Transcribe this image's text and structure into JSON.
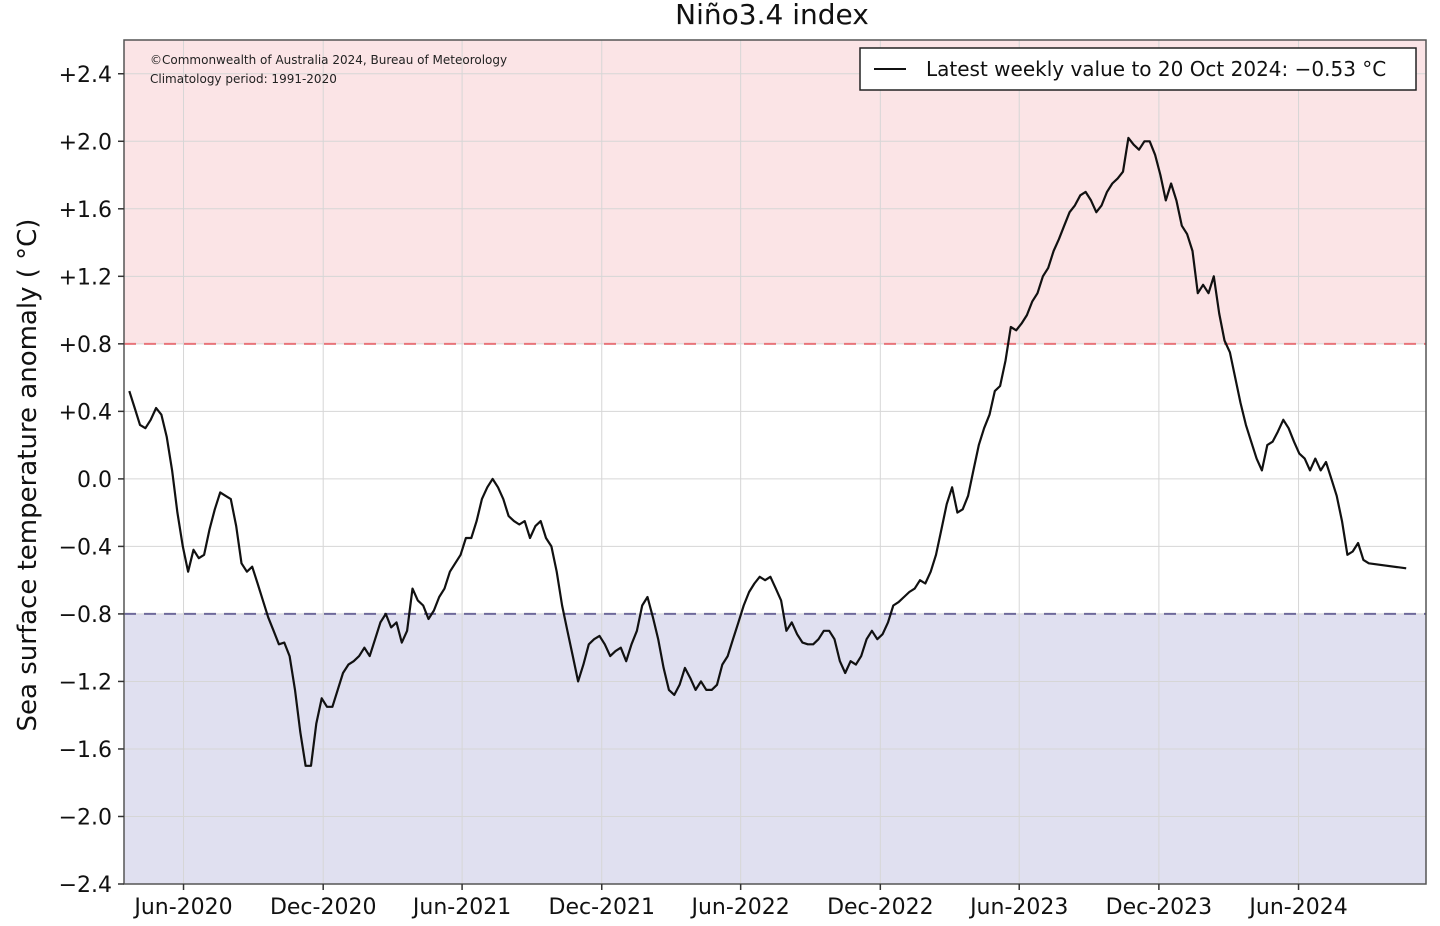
{
  "chart_data": {
    "type": "line",
    "title": "Niño3.4 index",
    "ylabel": "Sea surface temperature anomaly ( °C)",
    "xlabel": "",
    "copyright_lines": [
      "©Commonwealth of Australia 2024, Bureau of Meteorology",
      "Climatology period: 1991-2020"
    ],
    "legend": {
      "placement": "top-right",
      "entry": "Latest weekly value to 20 Oct 2024: −0.53 °C"
    },
    "ylim": [
      -2.4,
      2.6
    ],
    "y_ticks": [
      {
        "value": 2.4,
        "label": "+2.4"
      },
      {
        "value": 2.0,
        "label": "+2.0"
      },
      {
        "value": 1.6,
        "label": "+1.6"
      },
      {
        "value": 1.2,
        "label": "+1.2"
      },
      {
        "value": 0.8,
        "label": "+0.8"
      },
      {
        "value": 0.4,
        "label": "+0.4"
      },
      {
        "value": 0.0,
        "label": "0.0"
      },
      {
        "value": -0.4,
        "label": "−0.4"
      },
      {
        "value": -0.8,
        "label": "−0.8"
      },
      {
        "value": -1.2,
        "label": "−1.2"
      },
      {
        "value": -1.6,
        "label": "−1.6"
      },
      {
        "value": -2.0,
        "label": "−2.0"
      },
      {
        "value": -2.4,
        "label": "−2.4"
      }
    ],
    "xlim": [
      "2020-03-15",
      "2024-11-15"
    ],
    "x_ticks": [
      {
        "date": "2020-06-01",
        "label": "Jun-2020"
      },
      {
        "date": "2020-12-01",
        "label": "Dec-2020"
      },
      {
        "date": "2021-06-01",
        "label": "Jun-2021"
      },
      {
        "date": "2021-12-01",
        "label": "Dec-2021"
      },
      {
        "date": "2022-06-01",
        "label": "Jun-2022"
      },
      {
        "date": "2022-12-01",
        "label": "Dec-2022"
      },
      {
        "date": "2023-06-01",
        "label": "Jun-2023"
      },
      {
        "date": "2023-12-01",
        "label": "Dec-2023"
      },
      {
        "date": "2024-06-01",
        "label": "Jun-2024"
      }
    ],
    "grid": true,
    "thresholds": [
      {
        "value": 0.8,
        "color": "#e8747a",
        "shade_above": true,
        "shade_color": "#fbe4e6"
      },
      {
        "value": -0.8,
        "color": "#6e6a9a",
        "shade_below": true,
        "shade_color": "#e0e0f0"
      }
    ],
    "series": [
      {
        "color": "#111111",
        "points": [
          [
            "2020-03-22",
            0.52
          ],
          [
            "2020-03-29",
            0.42
          ],
          [
            "2020-04-05",
            0.32
          ],
          [
            "2020-04-12",
            0.3
          ],
          [
            "2020-04-19",
            0.35
          ],
          [
            "2020-04-26",
            0.42
          ],
          [
            "2020-05-03",
            0.38
          ],
          [
            "2020-05-10",
            0.25
          ],
          [
            "2020-05-17",
            0.05
          ],
          [
            "2020-05-24",
            -0.2
          ],
          [
            "2020-05-31",
            -0.4
          ],
          [
            "2020-06-07",
            -0.55
          ],
          [
            "2020-06-14",
            -0.42
          ],
          [
            "2020-06-21",
            -0.47
          ],
          [
            "2020-06-28",
            -0.45
          ],
          [
            "2020-07-05",
            -0.3
          ],
          [
            "2020-07-12",
            -0.18
          ],
          [
            "2020-07-19",
            -0.08
          ],
          [
            "2020-07-26",
            -0.1
          ],
          [
            "2020-08-02",
            -0.12
          ],
          [
            "2020-08-09",
            -0.28
          ],
          [
            "2020-08-16",
            -0.5
          ],
          [
            "2020-08-23",
            -0.55
          ],
          [
            "2020-08-30",
            -0.52
          ],
          [
            "2020-09-06",
            -0.62
          ],
          [
            "2020-09-13",
            -0.72
          ],
          [
            "2020-09-20",
            -0.82
          ],
          [
            "2020-09-27",
            -0.9
          ],
          [
            "2020-10-04",
            -0.98
          ],
          [
            "2020-10-11",
            -0.97
          ],
          [
            "2020-10-18",
            -1.05
          ],
          [
            "2020-10-25",
            -1.25
          ],
          [
            "2020-11-01",
            -1.5
          ],
          [
            "2020-11-08",
            -1.7
          ],
          [
            "2020-11-15",
            -1.7
          ],
          [
            "2020-11-22",
            -1.45
          ],
          [
            "2020-11-29",
            -1.3
          ],
          [
            "2020-12-06",
            -1.35
          ],
          [
            "2020-12-13",
            -1.35
          ],
          [
            "2020-12-20",
            -1.25
          ],
          [
            "2020-12-27",
            -1.15
          ],
          [
            "2021-01-03",
            -1.1
          ],
          [
            "2021-01-10",
            -1.08
          ],
          [
            "2021-01-17",
            -1.05
          ],
          [
            "2021-01-24",
            -1.0
          ],
          [
            "2021-01-31",
            -1.05
          ],
          [
            "2021-02-07",
            -0.95
          ],
          [
            "2021-02-14",
            -0.85
          ],
          [
            "2021-02-21",
            -0.8
          ],
          [
            "2021-02-28",
            -0.88
          ],
          [
            "2021-03-07",
            -0.85
          ],
          [
            "2021-03-14",
            -0.97
          ],
          [
            "2021-03-21",
            -0.9
          ],
          [
            "2021-03-28",
            -0.65
          ],
          [
            "2021-04-04",
            -0.72
          ],
          [
            "2021-04-11",
            -0.75
          ],
          [
            "2021-04-18",
            -0.83
          ],
          [
            "2021-04-25",
            -0.78
          ],
          [
            "2021-05-02",
            -0.7
          ],
          [
            "2021-05-09",
            -0.65
          ],
          [
            "2021-05-16",
            -0.55
          ],
          [
            "2021-05-23",
            -0.5
          ],
          [
            "2021-05-30",
            -0.45
          ],
          [
            "2021-06-06",
            -0.35
          ],
          [
            "2021-06-13",
            -0.35
          ],
          [
            "2021-06-20",
            -0.25
          ],
          [
            "2021-06-27",
            -0.12
          ],
          [
            "2021-07-04",
            -0.05
          ],
          [
            "2021-07-11",
            -0.0
          ],
          [
            "2021-07-18",
            -0.05
          ],
          [
            "2021-07-25",
            -0.12
          ],
          [
            "2021-08-01",
            -0.22
          ],
          [
            "2021-08-08",
            -0.25
          ],
          [
            "2021-08-15",
            -0.27
          ],
          [
            "2021-08-22",
            -0.25
          ],
          [
            "2021-08-29",
            -0.35
          ],
          [
            "2021-09-05",
            -0.28
          ],
          [
            "2021-09-12",
            -0.25
          ],
          [
            "2021-09-19",
            -0.35
          ],
          [
            "2021-09-26",
            -0.4
          ],
          [
            "2021-10-03",
            -0.55
          ],
          [
            "2021-10-10",
            -0.75
          ],
          [
            "2021-10-17",
            -0.9
          ],
          [
            "2021-10-24",
            -1.05
          ],
          [
            "2021-10-31",
            -1.2
          ],
          [
            "2021-11-07",
            -1.1
          ],
          [
            "2021-11-14",
            -0.98
          ],
          [
            "2021-11-21",
            -0.95
          ],
          [
            "2021-11-28",
            -0.93
          ],
          [
            "2021-12-05",
            -0.98
          ],
          [
            "2021-12-12",
            -1.05
          ],
          [
            "2021-12-19",
            -1.02
          ],
          [
            "2021-12-26",
            -1.0
          ],
          [
            "2022-01-02",
            -1.08
          ],
          [
            "2022-01-09",
            -0.98
          ],
          [
            "2022-01-16",
            -0.9
          ],
          [
            "2022-01-23",
            -0.75
          ],
          [
            "2022-01-30",
            -0.7
          ],
          [
            "2022-02-06",
            -0.82
          ],
          [
            "2022-02-13",
            -0.95
          ],
          [
            "2022-02-20",
            -1.12
          ],
          [
            "2022-02-27",
            -1.25
          ],
          [
            "2022-03-06",
            -1.28
          ],
          [
            "2022-03-13",
            -1.22
          ],
          [
            "2022-03-20",
            -1.12
          ],
          [
            "2022-03-27",
            -1.18
          ],
          [
            "2022-04-03",
            -1.25
          ],
          [
            "2022-04-10",
            -1.2
          ],
          [
            "2022-04-17",
            -1.25
          ],
          [
            "2022-04-24",
            -1.25
          ],
          [
            "2022-05-01",
            -1.22
          ],
          [
            "2022-05-08",
            -1.1
          ],
          [
            "2022-05-15",
            -1.05
          ],
          [
            "2022-05-22",
            -0.95
          ],
          [
            "2022-05-29",
            -0.85
          ],
          [
            "2022-06-05",
            -0.75
          ],
          [
            "2022-06-12",
            -0.67
          ],
          [
            "2022-06-19",
            -0.62
          ],
          [
            "2022-06-26",
            -0.58
          ],
          [
            "2022-07-03",
            -0.6
          ],
          [
            "2022-07-10",
            -0.58
          ],
          [
            "2022-07-17",
            -0.65
          ],
          [
            "2022-07-24",
            -0.72
          ],
          [
            "2022-07-31",
            -0.9
          ],
          [
            "2022-08-07",
            -0.85
          ],
          [
            "2022-08-14",
            -0.92
          ],
          [
            "2022-08-21",
            -0.97
          ],
          [
            "2022-08-28",
            -0.98
          ],
          [
            "2022-09-04",
            -0.98
          ],
          [
            "2022-09-11",
            -0.95
          ],
          [
            "2022-09-18",
            -0.9
          ],
          [
            "2022-09-25",
            -0.9
          ],
          [
            "2022-10-02",
            -0.95
          ],
          [
            "2022-10-09",
            -1.08
          ],
          [
            "2022-10-16",
            -1.15
          ],
          [
            "2022-10-23",
            -1.08
          ],
          [
            "2022-10-30",
            -1.1
          ],
          [
            "2022-11-06",
            -1.05
          ],
          [
            "2022-11-13",
            -0.95
          ],
          [
            "2022-11-20",
            -0.9
          ],
          [
            "2022-11-27",
            -0.95
          ],
          [
            "2022-12-04",
            -0.92
          ],
          [
            "2022-12-11",
            -0.85
          ],
          [
            "2022-12-18",
            -0.75
          ],
          [
            "2022-12-25",
            -0.73
          ],
          [
            "2023-01-01",
            -0.7
          ],
          [
            "2023-01-08",
            -0.67
          ],
          [
            "2023-01-15",
            -0.65
          ],
          [
            "2023-01-22",
            -0.6
          ],
          [
            "2023-01-29",
            -0.62
          ],
          [
            "2023-02-05",
            -0.55
          ],
          [
            "2023-02-12",
            -0.45
          ],
          [
            "2023-02-19",
            -0.3
          ],
          [
            "2023-02-26",
            -0.15
          ],
          [
            "2023-03-05",
            -0.05
          ],
          [
            "2023-03-12",
            -0.2
          ],
          [
            "2023-03-19",
            -0.18
          ],
          [
            "2023-03-26",
            -0.1
          ],
          [
            "2023-04-02",
            0.05
          ],
          [
            "2023-04-09",
            0.2
          ],
          [
            "2023-04-16",
            0.3
          ],
          [
            "2023-04-23",
            0.38
          ],
          [
            "2023-04-30",
            0.52
          ],
          [
            "2023-05-07",
            0.55
          ],
          [
            "2023-05-14",
            0.7
          ],
          [
            "2023-05-21",
            0.9
          ],
          [
            "2023-05-28",
            0.88
          ],
          [
            "2023-06-04",
            0.92
          ],
          [
            "2023-06-11",
            0.97
          ],
          [
            "2023-06-18",
            1.05
          ],
          [
            "2023-06-25",
            1.1
          ],
          [
            "2023-07-02",
            1.2
          ],
          [
            "2023-07-09",
            1.25
          ],
          [
            "2023-07-16",
            1.35
          ],
          [
            "2023-07-23",
            1.42
          ],
          [
            "2023-07-30",
            1.5
          ],
          [
            "2023-08-06",
            1.58
          ],
          [
            "2023-08-13",
            1.62
          ],
          [
            "2023-08-20",
            1.68
          ],
          [
            "2023-08-27",
            1.7
          ],
          [
            "2023-09-03",
            1.65
          ],
          [
            "2023-09-10",
            1.58
          ],
          [
            "2023-09-17",
            1.62
          ],
          [
            "2023-09-24",
            1.7
          ],
          [
            "2023-10-01",
            1.75
          ],
          [
            "2023-10-08",
            1.78
          ],
          [
            "2023-10-15",
            1.82
          ],
          [
            "2023-10-22",
            2.02
          ],
          [
            "2023-10-29",
            1.98
          ],
          [
            "2023-11-05",
            1.95
          ],
          [
            "2023-11-12",
            2.0
          ],
          [
            "2023-11-19",
            2.0
          ],
          [
            "2023-11-26",
            1.92
          ],
          [
            "2023-12-03",
            1.8
          ],
          [
            "2023-12-10",
            1.65
          ],
          [
            "2023-12-17",
            1.75
          ],
          [
            "2023-12-24",
            1.65
          ],
          [
            "2023-12-31",
            1.5
          ],
          [
            "2024-01-07",
            1.45
          ],
          [
            "2024-01-14",
            1.35
          ],
          [
            "2024-01-21",
            1.1
          ],
          [
            "2024-01-28",
            1.15
          ],
          [
            "2024-02-04",
            1.1
          ],
          [
            "2024-02-11",
            1.2
          ],
          [
            "2024-02-18",
            0.98
          ],
          [
            "2024-02-25",
            0.82
          ],
          [
            "2024-03-03",
            0.75
          ],
          [
            "2024-03-10",
            0.6
          ],
          [
            "2024-03-17",
            0.45
          ],
          [
            "2024-03-24",
            0.32
          ],
          [
            "2024-03-31",
            0.22
          ],
          [
            "2024-04-07",
            0.12
          ],
          [
            "2024-04-14",
            0.05
          ],
          [
            "2024-04-21",
            0.2
          ],
          [
            "2024-04-28",
            0.22
          ],
          [
            "2024-05-05",
            0.28
          ],
          [
            "2024-05-12",
            0.35
          ],
          [
            "2024-05-19",
            0.3
          ],
          [
            "2024-05-26",
            0.22
          ],
          [
            "2024-06-02",
            0.15
          ],
          [
            "2024-06-09",
            0.12
          ],
          [
            "2024-06-16",
            0.05
          ],
          [
            "2024-06-23",
            0.12
          ],
          [
            "2024-06-30",
            0.05
          ],
          [
            "2024-07-07",
            0.1
          ],
          [
            "2024-07-14",
            0.0
          ],
          [
            "2024-07-21",
            -0.1
          ],
          [
            "2024-07-28",
            -0.25
          ],
          [
            "2024-08-04",
            -0.45
          ],
          [
            "2024-08-11",
            -0.43
          ],
          [
            "2024-08-18",
            -0.38
          ],
          [
            "2024-08-25",
            -0.48
          ],
          [
            "2024-09-01",
            -0.5
          ],
          [
            "2024-10-20",
            -0.53
          ]
        ]
      }
    ]
  }
}
